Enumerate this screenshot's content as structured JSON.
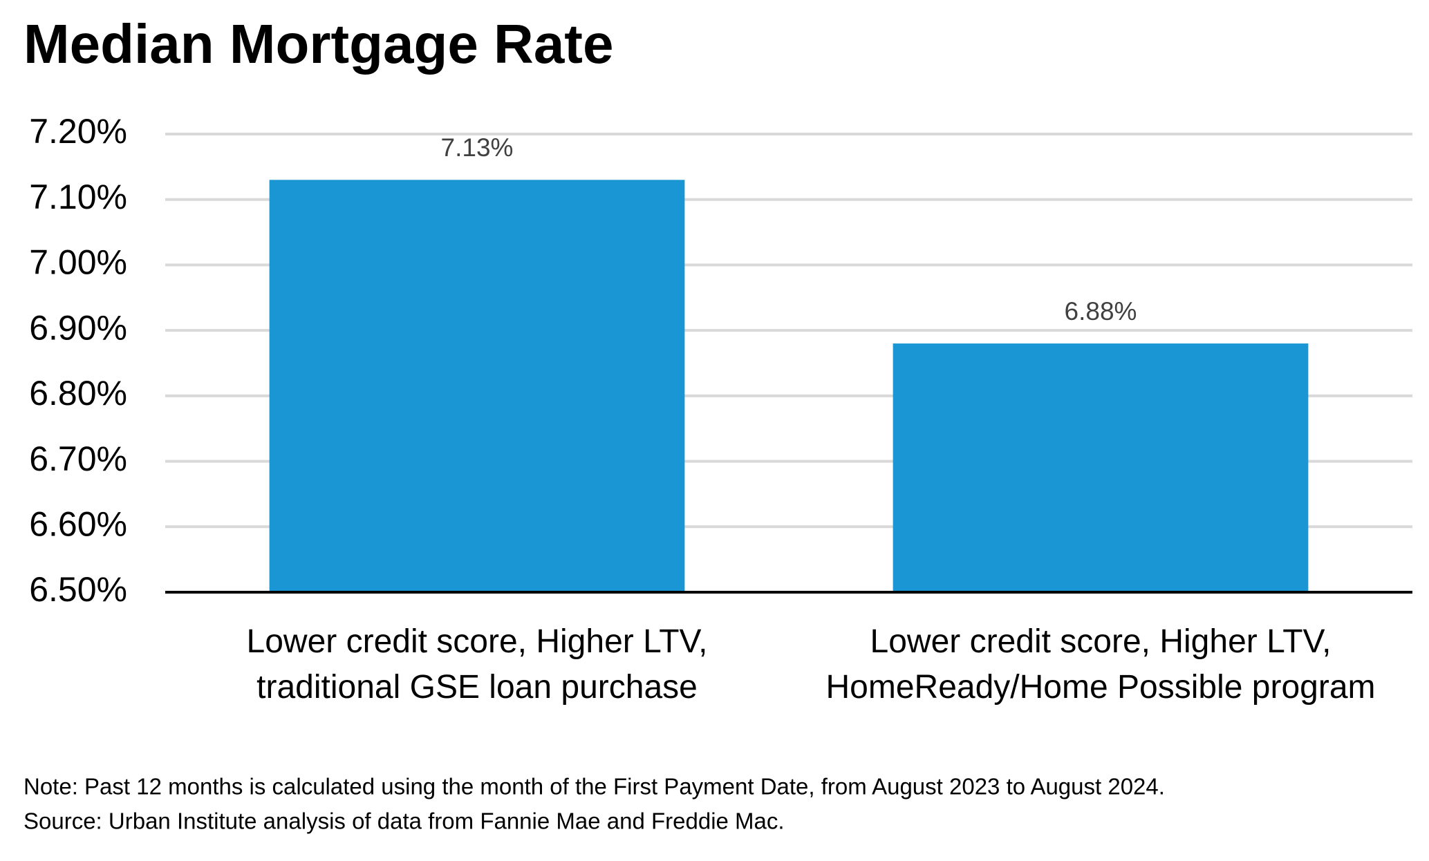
{
  "chart_data": {
    "type": "bar",
    "title": "Median Mortgage Rate",
    "categories": [
      "Lower credit score, Higher LTV, traditional GSE loan purchase",
      "Lower credit score, Higher LTV, HomeReady/Home Possible program"
    ],
    "values": [
      7.13,
      6.88
    ],
    "value_labels": [
      "7.13%",
      "6.88%"
    ],
    "color": "#1a96d4",
    "ylim": [
      6.5,
      7.2
    ],
    "yticks": [
      {
        "value": 6.5,
        "label": "6.50%"
      },
      {
        "value": 6.6,
        "label": "6.60%"
      },
      {
        "value": 6.7,
        "label": "6.70%"
      },
      {
        "value": 6.8,
        "label": "6.80%"
      },
      {
        "value": 6.9,
        "label": "6.90%"
      },
      {
        "value": 7.0,
        "label": "7.00%"
      },
      {
        "value": 7.1,
        "label": "7.10%"
      },
      {
        "value": 7.2,
        "label": "7.20%"
      }
    ],
    "grid": true,
    "notes": [
      "Note: Past 12 months is calculated using the month of the First Payment Date, from August 2023 to August 2024.",
      "Source: Urban Institute analysis of data from Fannie Mae and Freddie Mac."
    ]
  }
}
